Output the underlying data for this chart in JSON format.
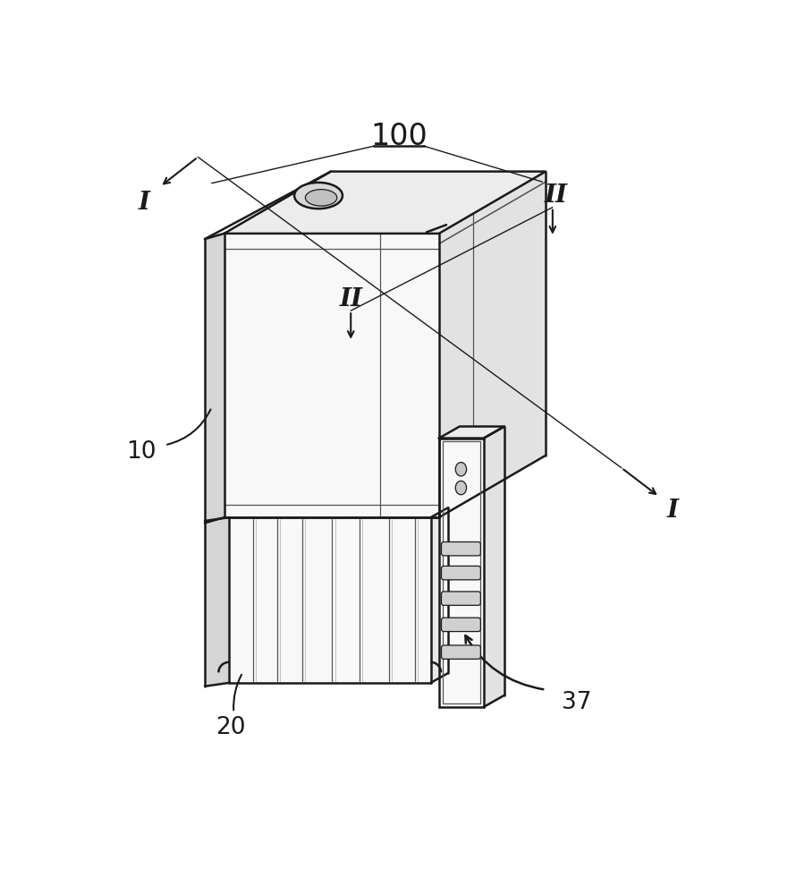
{
  "bg_color": "#ffffff",
  "lc": "#1a1a1a",
  "lc_thin": "#555555",
  "fill_front": "#f8f8f8",
  "fill_top": "#ececec",
  "fill_right": "#e2e2e2",
  "fill_left_edge": "#d5d5d5",
  "fill_lower": "#f2f2f2",
  "fill_slot": "#d0d0d0",
  "title": "100",
  "label_I": "I",
  "label_II": "II",
  "label_10": "10",
  "label_20": "20",
  "label_37": "37",
  "lw_main": 1.8,
  "lw_thin": 0.9,
  "lw_annotation": 1.3
}
